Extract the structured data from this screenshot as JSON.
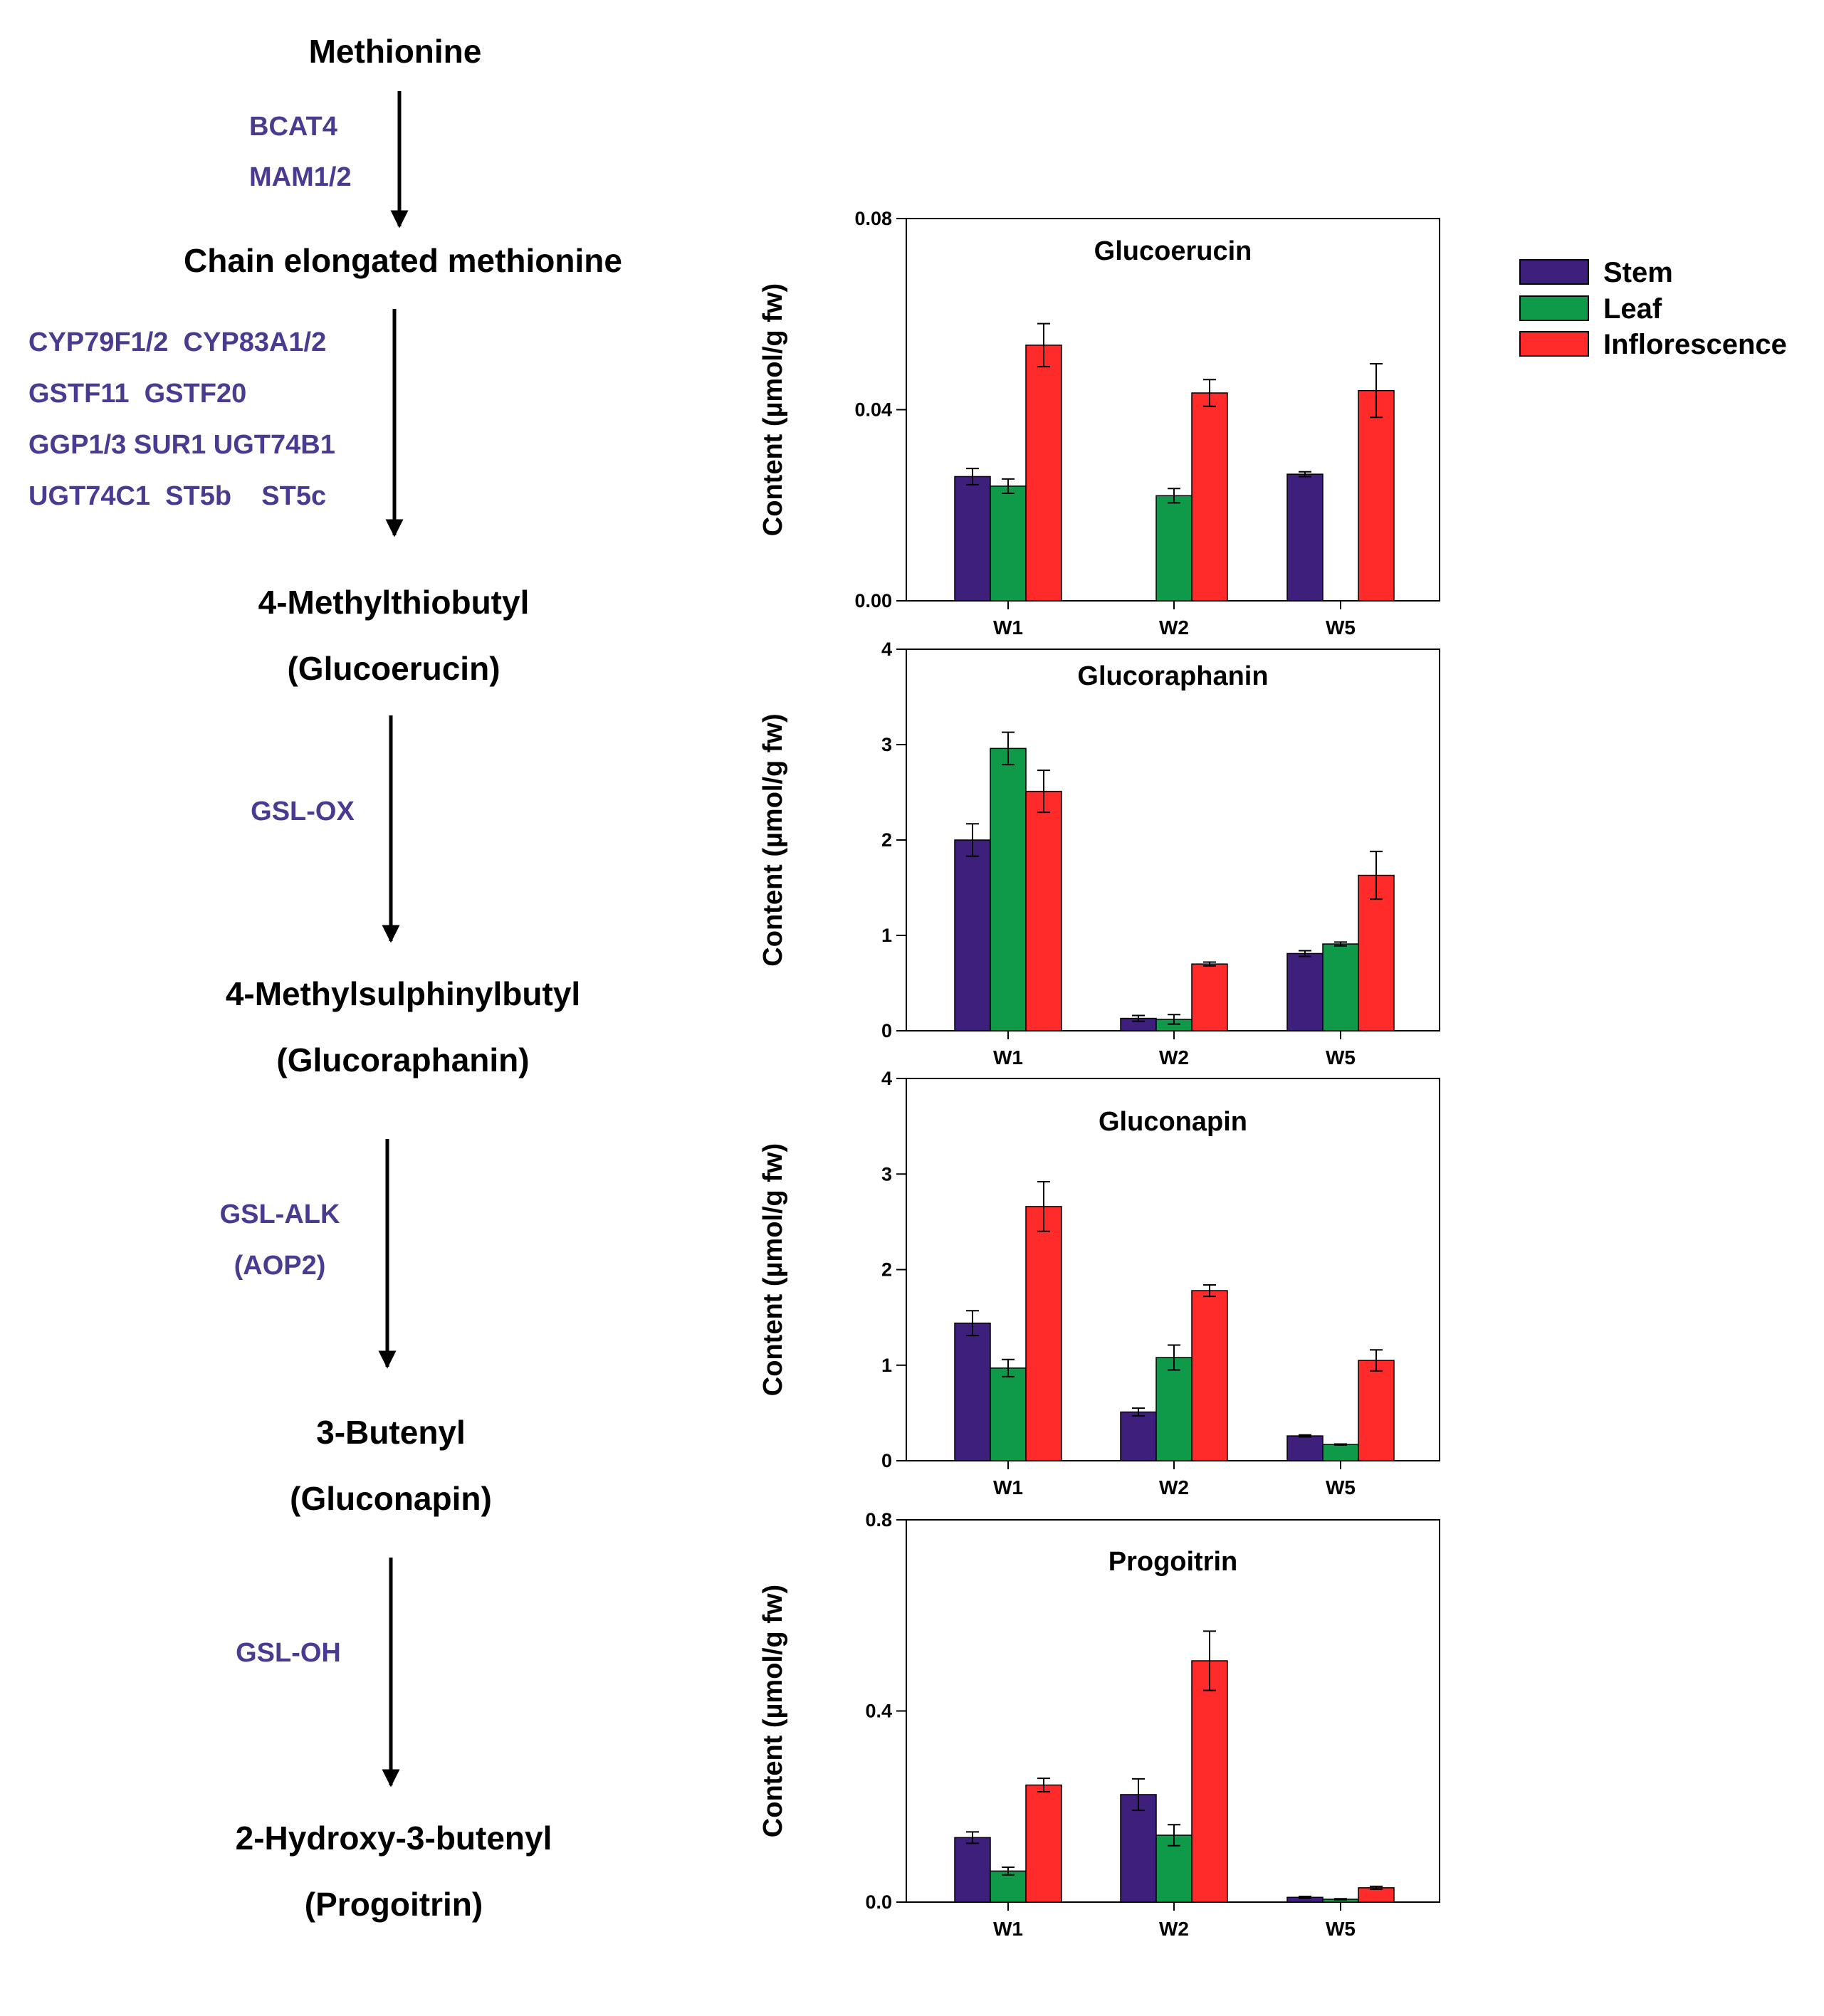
{
  "pathway": {
    "compounds": {
      "methionine": "Methionine",
      "chain_elongated": "Chain elongated methionine",
      "mtb": "4-Methylthiobutyl",
      "glucoerucin": "(Glucoerucin)",
      "msb": "4-Methylsulphinylbutyl",
      "glucoraphanin": "(Glucoraphanin)",
      "butenyl": "3-Butenyl",
      "gluconapin": "(Gluconapin)",
      "hydroxybutenyl": "2-Hydroxy-3-butenyl",
      "progoitrin": "(Progoitrin)"
    },
    "enzymes": {
      "step1": [
        "BCAT4",
        "MAM1/2"
      ],
      "step2": [
        "CYP79F1/2  CYP83A1/2",
        "GSTF11  GSTF20",
        "GGP1/3 SUR1 UGT74B1",
        "UGT74C1  ST5b    ST5c"
      ],
      "step3": [
        "GSL-OX"
      ],
      "step4": [
        "GSL-ALK",
        "(AOP2)"
      ],
      "step5": [
        "GSL-OH"
      ]
    }
  },
  "colors": {
    "stem": "#3f1f7c",
    "leaf": "#0f9a4a",
    "inflorescence": "#ff2a2a",
    "enzyme_text": "#4b3a91"
  },
  "legend": {
    "items": [
      {
        "key": "stem",
        "label": "Stem"
      },
      {
        "key": "leaf",
        "label": "Leaf"
      },
      {
        "key": "inflorescence",
        "label": "Inflorescence"
      }
    ]
  },
  "chart_data": [
    {
      "type": "bar",
      "title": "Glucoerucin",
      "ylabel": "Content (µmol/g fw)",
      "xlabel": "",
      "categories": [
        "W1",
        "W2",
        "W5"
      ],
      "ylim": [
        0,
        0.08
      ],
      "yticks": [
        "0.00",
        "0.04",
        "0.08"
      ],
      "ytick_values": [
        0,
        0.04,
        0.08
      ],
      "series": [
        {
          "name": "Stem",
          "key": "stem",
          "values": [
            0.026,
            null,
            0.0265
          ],
          "errors": [
            0.0017,
            null,
            0.0005
          ]
        },
        {
          "name": "Leaf",
          "key": "leaf",
          "values": [
            0.024,
            0.022,
            null
          ],
          "errors": [
            0.0015,
            0.0015,
            null
          ]
        },
        {
          "name": "Inflorescence",
          "key": "inflorescence",
          "values": [
            0.0535,
            0.0435,
            0.044
          ],
          "errors": [
            0.0045,
            0.0028,
            0.0056
          ]
        }
      ]
    },
    {
      "type": "bar",
      "title": "Glucoraphanin",
      "ylabel": "Content (µmol/g fw)",
      "xlabel": "",
      "categories": [
        "W1",
        "W2",
        "W5"
      ],
      "ylim": [
        0,
        4
      ],
      "yticks": [
        "0",
        "1",
        "2",
        "3",
        "4"
      ],
      "ytick_values": [
        0,
        1,
        2,
        3,
        4
      ],
      "series": [
        {
          "name": "Stem",
          "key": "stem",
          "values": [
            2.0,
            0.13,
            0.81
          ],
          "errors": [
            0.17,
            0.03,
            0.03
          ]
        },
        {
          "name": "Leaf",
          "key": "leaf",
          "values": [
            2.96,
            0.12,
            0.91
          ],
          "errors": [
            0.17,
            0.05,
            0.02
          ]
        },
        {
          "name": "Inflorescence",
          "key": "inflorescence",
          "values": [
            2.51,
            0.7,
            1.63
          ],
          "errors": [
            0.22,
            0.02,
            0.25
          ]
        }
      ]
    },
    {
      "type": "bar",
      "title": "Gluconapin",
      "ylabel": "Content (µmol/g fw)",
      "xlabel": "",
      "categories": [
        "W1",
        "W2",
        "W5"
      ],
      "ylim": [
        0,
        4
      ],
      "yticks": [
        "0",
        "1",
        "2",
        "3",
        "4"
      ],
      "ytick_values": [
        0,
        1,
        2,
        3,
        4
      ],
      "series": [
        {
          "name": "Stem",
          "key": "stem",
          "values": [
            1.44,
            0.51,
            0.26
          ],
          "errors": [
            0.13,
            0.04,
            0.01
          ]
        },
        {
          "name": "Leaf",
          "key": "leaf",
          "values": [
            0.97,
            1.08,
            0.17
          ],
          "errors": [
            0.09,
            0.13,
            0.005
          ]
        },
        {
          "name": "Inflorescence",
          "key": "inflorescence",
          "values": [
            2.66,
            1.78,
            1.05
          ],
          "errors": [
            0.26,
            0.06,
            0.11
          ]
        }
      ]
    },
    {
      "type": "bar",
      "title": "Progoitrin",
      "ylabel": "Content (µmol/g fw)",
      "xlabel": "",
      "categories": [
        "W1",
        "W2",
        "W5"
      ],
      "ylim": [
        0,
        0.8
      ],
      "yticks": [
        "0.0",
        "0.4",
        "0.8"
      ],
      "ytick_values": [
        0,
        0.4,
        0.8
      ],
      "series": [
        {
          "name": "Stem",
          "key": "stem",
          "values": [
            0.135,
            0.225,
            0.01
          ],
          "errors": [
            0.012,
            0.033,
            0.002
          ]
        },
        {
          "name": "Leaf",
          "key": "leaf",
          "values": [
            0.065,
            0.14,
            0.006
          ],
          "errors": [
            0.008,
            0.022,
            0.001
          ]
        },
        {
          "name": "Inflorescence",
          "key": "inflorescence",
          "values": [
            0.245,
            0.505,
            0.03
          ],
          "errors": [
            0.014,
            0.062,
            0.003
          ]
        }
      ]
    }
  ]
}
